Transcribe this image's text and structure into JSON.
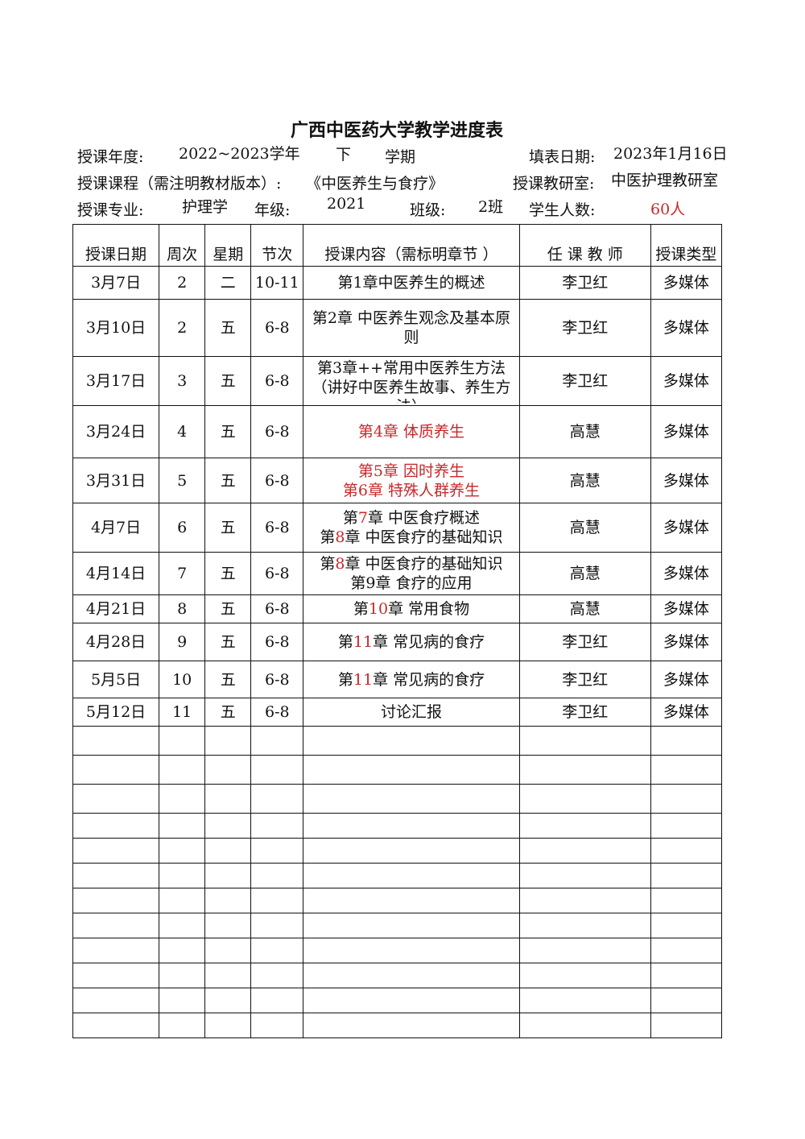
{
  "title": "广西中医药大学教学进度表",
  "info": {
    "year_label": "授课年度:",
    "year_value": "2022~2023学年",
    "term_value": "下",
    "term_label": "学期",
    "fill_date_label": "填表日期:",
    "fill_date_value": "2023年1月16日",
    "course_label": "授课课程（需注明教材版本）:",
    "course_value": "《中医养生与食疗》",
    "dept_label": "授课教研室:",
    "dept_value": "中医护理教研室",
    "major_label": "授课专业:",
    "major_value": "护理学",
    "grade_label": "年级:",
    "grade_value": "2021",
    "class_label": "班级:",
    "class_value": "2班",
    "students_label": "学生人数:",
    "students_value": "60人"
  },
  "colors": {
    "accent_red": "#c8282a",
    "text": "#111111"
  },
  "table": {
    "headers": [
      "授课日期",
      "周次",
      "星期",
      "节次",
      "授课内容（需标明章节 ）",
      "任 课 教 师",
      "授课类型"
    ],
    "rows": [
      {
        "date": "3月7日",
        "week": "2",
        "day": "二",
        "period": "10-11",
        "content": [
          [
            {
              "t": "第1章中医养生的概述",
              "red": false
            }
          ]
        ],
        "teacher": "李卫红",
        "type": "多媒体"
      },
      {
        "date": "3月10日",
        "week": "2",
        "day": "五",
        "period": "6-8",
        "content": [
          [
            {
              "t": "第2章  中医养生观念及基本原",
              "red": false
            }
          ],
          [
            {
              "t": "则",
              "red": false
            }
          ]
        ],
        "teacher": "李卫红",
        "type": "多媒体"
      },
      {
        "date": "3月17日",
        "week": "3",
        "day": "五",
        "period": "6-8",
        "content": [
          [
            {
              "t": "第3章++常用中医养生方法",
              "red": false
            }
          ],
          [
            {
              "t": "（讲好中医养生故事、养生方",
              "red": false
            }
          ],
          [
            {
              "t": "法）",
              "red": false
            }
          ]
        ],
        "teacher": "李卫红",
        "type": "多媒体"
      },
      {
        "date": "3月24日",
        "week": "4",
        "day": "五",
        "period": "6-8",
        "content": [
          [
            {
              "t": "第4章  体质养生",
              "red": true
            }
          ]
        ],
        "teacher": "高慧",
        "type": "多媒体"
      },
      {
        "date": "3月31日",
        "week": "5",
        "day": "五",
        "period": "6-8",
        "content": [
          [
            {
              "t": "第5章    因时养生",
              "red": true
            }
          ],
          [
            {
              "t": "第6章    特殊人群养生",
              "red": true
            }
          ]
        ],
        "teacher": "高慧",
        "type": "多媒体"
      },
      {
        "date": "4月7日",
        "week": "6",
        "day": "五",
        "period": "6-8",
        "content": [
          [
            {
              "t": "第",
              "red": false
            },
            {
              "t": "7",
              "red": true
            },
            {
              "t": "章  中医食疗概述",
              "red": false
            }
          ],
          [
            {
              "t": "第",
              "red": false
            },
            {
              "t": "8",
              "red": true
            },
            {
              "t": "章  中医食疗的基础知识",
              "red": false
            }
          ]
        ],
        "teacher": "高慧",
        "type": "多媒体"
      },
      {
        "date": "4月14日",
        "week": "7",
        "day": "五",
        "period": "6-8",
        "content": [
          [
            {
              "t": "第",
              "red": false
            },
            {
              "t": "8",
              "red": true
            },
            {
              "t": "章  中医食疗的基础知识",
              "red": false
            }
          ],
          [
            {
              "t": "第9章  食疗的应用",
              "red": false
            }
          ]
        ],
        "teacher": "高慧",
        "type": "多媒体"
      },
      {
        "date": "4月21日",
        "week": "8",
        "day": "五",
        "period": "6-8",
        "content": [
          [
            {
              "t": "第",
              "red": false
            },
            {
              "t": "10",
              "red": true
            },
            {
              "t": "章  常用食物",
              "red": false
            }
          ]
        ],
        "teacher": "高慧",
        "type": "多媒体"
      },
      {
        "date": "4月28日",
        "week": "9",
        "day": "五",
        "period": "6-8",
        "content": [
          [
            {
              "t": "第",
              "red": false
            },
            {
              "t": "11",
              "red": true
            },
            {
              "t": "章  常见病的食疗",
              "red": false
            }
          ]
        ],
        "teacher": "李卫红",
        "type": "多媒体"
      },
      {
        "date": "5月5日",
        "week": "10",
        "day": "五",
        "period": "6-8",
        "content": [
          [
            {
              "t": "第",
              "red": false
            },
            {
              "t": "11",
              "red": true
            },
            {
              "t": "章  常见病的食疗",
              "red": false
            }
          ]
        ],
        "teacher": "李卫红",
        "type": "多媒体"
      },
      {
        "date": "5月12日",
        "week": "11",
        "day": "五",
        "period": "6-8",
        "content": [
          [
            {
              "t": "讨论汇报",
              "red": false
            }
          ]
        ],
        "teacher": "李卫红",
        "type": "多媒体"
      }
    ]
  }
}
